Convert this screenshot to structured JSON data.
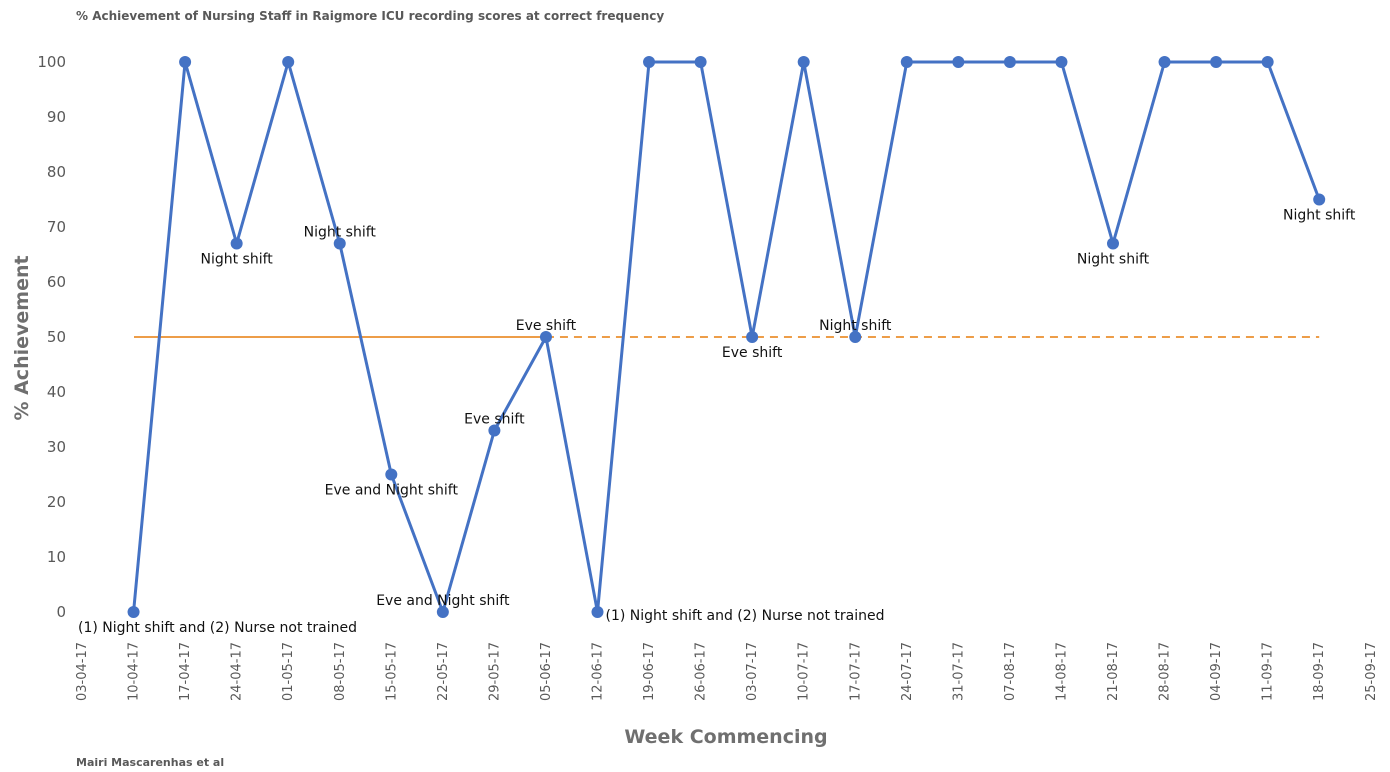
{
  "title": "% Achievement of Nursing Staff in Raigmore ICU recording scores at correct frequency",
  "footer": "Mairi Mascarenhas et al",
  "colors": {
    "series": "#4472c4",
    "target": "#ed9d48",
    "tick_text": "#595959",
    "axis_title": "#6f6f6f"
  },
  "chart_data": {
    "type": "line",
    "title": "% Achievement of Nursing Staff in Raigmore ICU recording scores at correct frequency",
    "xlabel": "Week Commencing",
    "ylabel": "% Achievement",
    "ylim": [
      0,
      100
    ],
    "yticks": [
      0,
      10,
      20,
      30,
      40,
      50,
      60,
      70,
      80,
      90,
      100
    ],
    "grid": false,
    "categories": [
      "03-04-17",
      "10-04-17",
      "17-04-17",
      "24-04-17",
      "01-05-17",
      "08-05-17",
      "15-05-17",
      "22-05-17",
      "29-05-17",
      "05-06-17",
      "12-06-17",
      "19-06-17",
      "26-06-17",
      "03-07-17",
      "10-07-17",
      "17-07-17",
      "24-07-17",
      "31-07-17",
      "07-08-17",
      "14-08-17",
      "21-08-17",
      "28-08-17",
      "04-09-17",
      "11-09-17",
      "18-09-17",
      "25-09-17"
    ],
    "series": [
      {
        "values": [
          null,
          0,
          100,
          67,
          100,
          67,
          25,
          0,
          33,
          50,
          0,
          100,
          100,
          50,
          100,
          50,
          100,
          100,
          100,
          100,
          67,
          100,
          100,
          100,
          75,
          null
        ]
      }
    ],
    "target": {
      "value": 50,
      "solid_until": "05-06-17"
    },
    "annotations": [
      {
        "x": "10-04-17",
        "text": "(1) Night shift and (2) Nurse not trained",
        "pos": "below"
      },
      {
        "x": "24-04-17",
        "text": "Night shift",
        "pos": "below"
      },
      {
        "x": "08-05-17",
        "text": "Night shift",
        "pos": "above"
      },
      {
        "x": "15-05-17",
        "text": "Eve and Night shift",
        "pos": "below"
      },
      {
        "x": "22-05-17",
        "text": "Eve and Night shift",
        "pos": "above"
      },
      {
        "x": "29-05-17",
        "text": "Eve shift",
        "pos": "above"
      },
      {
        "x": "05-06-17",
        "text": "Eve shift",
        "pos": "above"
      },
      {
        "x": "12-06-17",
        "text": "(1) Night shift and (2) Nurse not trained",
        "pos": "right"
      },
      {
        "x": "03-07-17",
        "text": "Eve shift",
        "pos": "below"
      },
      {
        "x": "17-07-17",
        "text": "Night shift",
        "pos": "above"
      },
      {
        "x": "21-08-17",
        "text": "Night shift",
        "pos": "below"
      },
      {
        "x": "18-09-17",
        "text": "Night shift",
        "pos": "below"
      }
    ]
  }
}
